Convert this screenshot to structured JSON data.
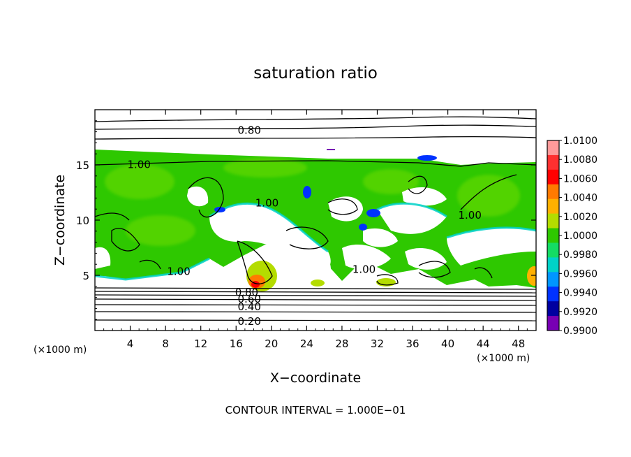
{
  "chart_data": {
    "type": "heatmap",
    "title": "saturation ratio",
    "xlabel": "X−coordinate",
    "ylabel": "Z−coordinate",
    "x_unit": "(×1000 m)",
    "y_unit": "(×1000 m)",
    "xlim": [
      0,
      50
    ],
    "ylim": [
      0,
      20
    ],
    "x_ticks": [
      4,
      8,
      12,
      16,
      20,
      24,
      28,
      32,
      36,
      40,
      44,
      48
    ],
    "y_ticks": [
      5,
      10,
      15
    ],
    "footer": "CONTOUR INTERVAL = 1.000E−01",
    "colorbar": {
      "levels": [
        "1.0100",
        "1.0080",
        "1.0060",
        "1.0040",
        "1.0020",
        "1.0000",
        "0.9980",
        "0.9960",
        "0.9940",
        "0.9920",
        "0.9900"
      ],
      "colors": [
        "#ff9a9a",
        "#ff3030",
        "#ff0000",
        "#ff7a00",
        "#ffb000",
        "#b4dc00",
        "#2ec800",
        "#14dc64",
        "#00d2c8",
        "#0096ff",
        "#0032ff",
        "#0000a0",
        "#7800b4"
      ]
    },
    "contour_labels": [
      {
        "text": "0.80",
        "x": 17.5,
        "z": 18.2
      },
      {
        "text": "1.00",
        "x": 5.0,
        "z": 15.1
      },
      {
        "text": "1.00",
        "x": 19.5,
        "z": 11.6
      },
      {
        "text": "1.00",
        "x": 42.5,
        "z": 10.5
      },
      {
        "text": "1.00",
        "x": 9.5,
        "z": 5.4
      },
      {
        "text": "1.00",
        "x": 30.5,
        "z": 5.6
      },
      {
        "text": "0.80",
        "x": 17.2,
        "z": 3.5
      },
      {
        "text": "0.60",
        "x": 17.5,
        "z": 2.9
      },
      {
        "text": "0.40",
        "x": 17.5,
        "z": 2.2
      },
      {
        "text": "0.20",
        "x": 17.5,
        "z": 0.9
      }
    ]
  }
}
